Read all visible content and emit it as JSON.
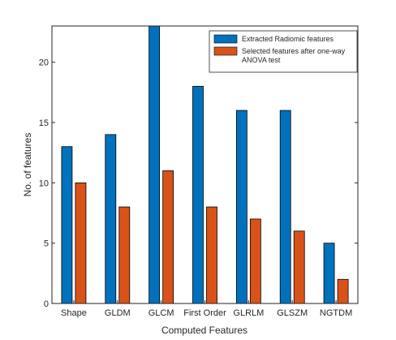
{
  "chart_data": {
    "type": "bar",
    "title": "",
    "xlabel": "Computed Features",
    "ylabel": "No. of features",
    "categories": [
      "Shape",
      "GLDM",
      "GLCM",
      "First Order",
      "GLRLM",
      "GLSZM",
      "NGTDM"
    ],
    "series": [
      {
        "name": "Extracted Radiomic features",
        "values": [
          13,
          14,
          24,
          18,
          16,
          16,
          5
        ],
        "color": "#0072BD"
      },
      {
        "name": "Selected features after one-way ANOVA test",
        "values": [
          10,
          8,
          11,
          8,
          7,
          6,
          2
        ],
        "color": "#D95319"
      }
    ],
    "legend_lines": [
      [
        "Extracted Radiomic features"
      ],
      [
        "Selected features after one-way",
        "ANOVA test"
      ]
    ],
    "ylim": [
      0,
      23
    ],
    "yticks": [
      0,
      5,
      10,
      15,
      20
    ],
    "grid": false,
    "legend_position": "top-right"
  }
}
